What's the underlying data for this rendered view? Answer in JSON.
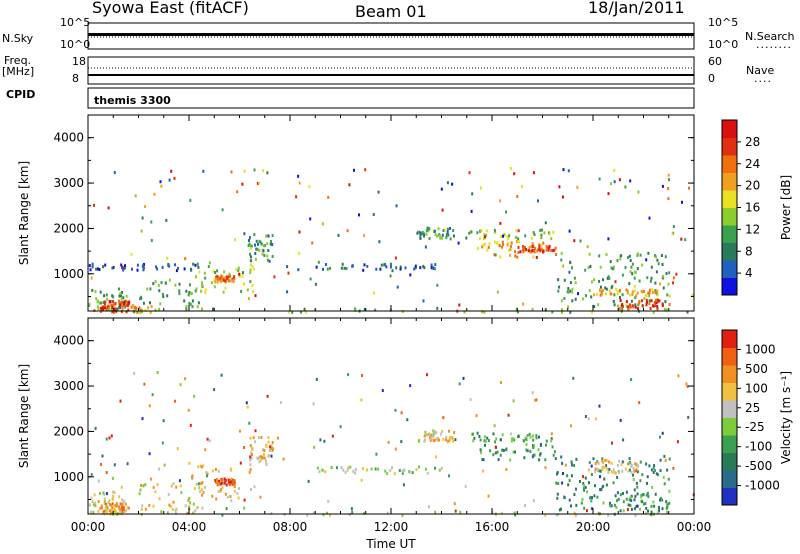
{
  "header": {
    "station": "Syowa East (fitACF)",
    "beam": "Beam 01",
    "date": "18/Jan/2011"
  },
  "strips": {
    "nsky_label": "N.Sky",
    "nsearch_label": "N.Search",
    "nsearch_legend": "........",
    "nsky_ticks": [
      "10^5",
      "10^0"
    ],
    "nsearch_ticks": [
      "10^5",
      "10^0"
    ],
    "freq_label": "Freq.",
    "freq_unit": "[MHz]",
    "freq_ticks": [
      "18",
      "8"
    ],
    "nave_label": "Nave",
    "nave_legend": "....",
    "nave_ticks": [
      "60",
      "0"
    ],
    "cpid_label": "CPID",
    "cpid_value": "themis 3300"
  },
  "chart_data": [
    {
      "type": "heatmap",
      "name_key": "power",
      "ylabel": "Slant Range [km]",
      "yticks": [
        "4000",
        "3000",
        "2000",
        "1000"
      ],
      "ylim": [
        180,
        4500
      ],
      "xticks": [
        "00:00",
        "04:00",
        "08:00",
        "12:00",
        "16:00",
        "20:00",
        "00:00"
      ],
      "xlim_hours": [
        0,
        24
      ],
      "colorbar": {
        "label": "Power [dB]",
        "ticks": [
          "28",
          "24",
          "20",
          "16",
          "12",
          "8",
          "4"
        ],
        "colors": [
          "#1010e0",
          "#2060c0",
          "#2a7a5a",
          "#3aa050",
          "#8ccc2c",
          "#e8e020",
          "#f0a020",
          "#f07010",
          "#e03010",
          "#d81010"
        ]
      },
      "clusters": [
        {
          "t0": 0.0,
          "t1": 1.5,
          "r0": 200,
          "r1": 700,
          "level": 0.35
        },
        {
          "t0": 0.2,
          "t1": 2.5,
          "r0": 180,
          "r1": 350,
          "level": 0.7
        },
        {
          "t0": 0.5,
          "t1": 1.6,
          "r0": 250,
          "r1": 450,
          "level": 0.85
        },
        {
          "t0": 0.0,
          "t1": 4.5,
          "r0": 1100,
          "r1": 1250,
          "level": 0.15
        },
        {
          "t0": 2.0,
          "t1": 4.5,
          "r0": 300,
          "r1": 900,
          "level": 0.35
        },
        {
          "t0": 4.0,
          "t1": 6.7,
          "r0": 600,
          "r1": 1300,
          "level": 0.45
        },
        {
          "t0": 5.0,
          "t1": 5.8,
          "r0": 850,
          "r1": 1000,
          "level": 0.75
        },
        {
          "t0": 6.3,
          "t1": 7.3,
          "r0": 1300,
          "r1": 1900,
          "level": 0.3
        },
        {
          "t0": 9.0,
          "t1": 14.0,
          "r0": 1100,
          "r1": 1250,
          "level": 0.2
        },
        {
          "t0": 13.0,
          "t1": 14.5,
          "r0": 1800,
          "r1": 2050,
          "level": 0.3
        },
        {
          "t0": 15.0,
          "t1": 18.5,
          "r0": 1800,
          "r1": 2000,
          "level": 0.45
        },
        {
          "t0": 15.5,
          "t1": 18.5,
          "r0": 1400,
          "r1": 1750,
          "level": 0.65
        },
        {
          "t0": 17.0,
          "t1": 18.5,
          "r0": 1500,
          "r1": 1650,
          "level": 0.85
        },
        {
          "t0": 18.5,
          "t1": 23.0,
          "r0": 300,
          "r1": 1500,
          "level": 0.35
        },
        {
          "t0": 20.0,
          "t1": 22.8,
          "r0": 550,
          "r1": 700,
          "level": 0.65
        },
        {
          "t0": 21.0,
          "t1": 23.0,
          "r0": 250,
          "r1": 450,
          "level": 0.85
        },
        {
          "t0": 0.0,
          "t1": 24.0,
          "r0": 180,
          "r1": 260,
          "level": 0.4
        }
      ]
    },
    {
      "type": "heatmap",
      "name_key": "velocity",
      "ylabel": "Slant Range [km]",
      "yticks": [
        "4000",
        "3000",
        "2000",
        "1000"
      ],
      "ylim": [
        180,
        4500
      ],
      "xticks": [
        "00:00",
        "04:00",
        "08:00",
        "12:00",
        "16:00",
        "20:00",
        "00:00"
      ],
      "xlim_hours": [
        0,
        24
      ],
      "xlabel": "Time UT",
      "colorbar": {
        "label": "Velocity [m s⁻¹]",
        "ticks": [
          "1000",
          "500",
          "100",
          "25",
          "-25",
          "-100",
          "-500",
          "-1000"
        ],
        "colors": [
          "#2030c0",
          "#2a6a8a",
          "#2a7a5a",
          "#3aa050",
          "#7ccc3c",
          "#c0c0c0",
          "#f0c040",
          "#f09020",
          "#f06010",
          "#e02010"
        ]
      },
      "clusters": [
        {
          "t0": 0.0,
          "t1": 1.5,
          "r0": 200,
          "r1": 700,
          "level": 0.6
        },
        {
          "t0": 0.5,
          "t1": 1.6,
          "r0": 250,
          "r1": 450,
          "level": 0.75
        },
        {
          "t0": 2.0,
          "t1": 4.5,
          "r0": 200,
          "r1": 900,
          "level": 0.6
        },
        {
          "t0": 4.0,
          "t1": 6.7,
          "r0": 500,
          "r1": 1300,
          "level": 0.65
        },
        {
          "t0": 5.0,
          "t1": 5.8,
          "r0": 850,
          "r1": 1000,
          "level": 0.85
        },
        {
          "t0": 6.3,
          "t1": 7.3,
          "r0": 1300,
          "r1": 1900,
          "level": 0.65
        },
        {
          "t0": 9.0,
          "t1": 14.0,
          "r0": 1100,
          "r1": 1250,
          "level": 0.5
        },
        {
          "t0": 13.0,
          "t1": 14.5,
          "r0": 1800,
          "r1": 2050,
          "level": 0.6
        },
        {
          "t0": 15.0,
          "t1": 18.5,
          "r0": 1800,
          "r1": 2000,
          "level": 0.4
        },
        {
          "t0": 15.5,
          "t1": 18.5,
          "r0": 1400,
          "r1": 1750,
          "level": 0.3
        },
        {
          "t0": 18.5,
          "t1": 23.0,
          "r0": 300,
          "r1": 1500,
          "level": 0.28
        },
        {
          "t0": 20.0,
          "t1": 21.8,
          "r0": 1100,
          "r1": 1400,
          "level": 0.65
        },
        {
          "t0": 21.0,
          "t1": 23.0,
          "r0": 250,
          "r1": 700,
          "level": 0.3
        },
        {
          "t0": 0.0,
          "t1": 24.0,
          "r0": 180,
          "r1": 260,
          "level": 0.5
        }
      ]
    }
  ]
}
